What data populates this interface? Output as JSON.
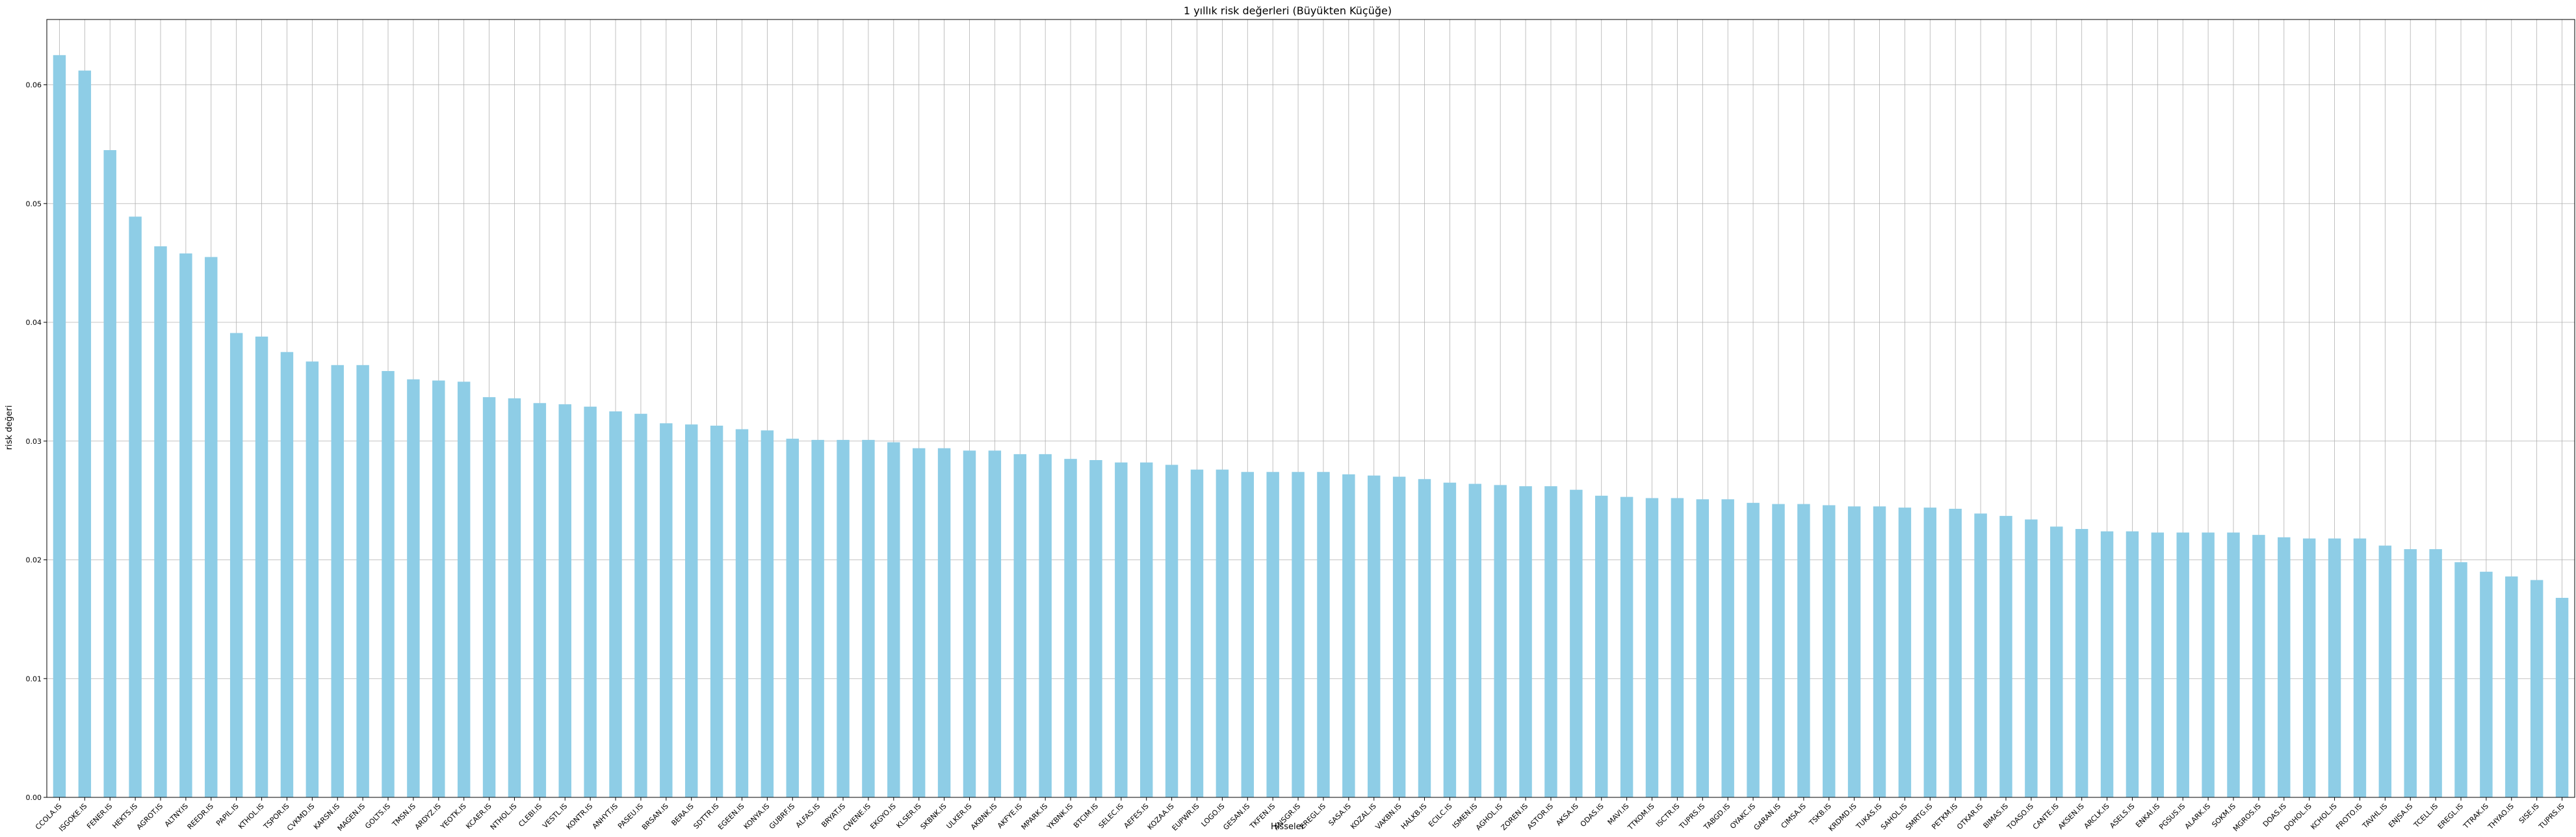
{
  "chart_data": {
    "type": "bar",
    "title": "1 yıllık risk değerleri (Büyükten Küçüğe)",
    "xlabel": "Hisseler",
    "ylabel": "risk değeri",
    "ylim": [
      0,
      0.0655
    ],
    "yticks": [
      "0.00",
      "0.01",
      "0.02",
      "0.03",
      "0.04",
      "0.05",
      "0.06"
    ],
    "grid": true,
    "bar_color": "#8ecde6",
    "categories": [
      "CCOLA.IS",
      "ISGOKE.IS",
      "FENER.IS",
      "HEKTS.IS",
      "AGROT.IS",
      "ALTNY.IS",
      "REEDR.IS",
      "PAPIL.IS",
      "KTHOL.IS",
      "TSPOR.IS",
      "CVKMD.IS",
      "KARSN.IS",
      "MAGEN.IS",
      "GOLTS.IS",
      "TMSN.IS",
      "ARDYZ.IS",
      "YEOTK.IS",
      "KCAER.IS",
      "NTHOL.IS",
      "CLEBI.IS",
      "VESTL.IS",
      "KONTR.IS",
      "ANHYT.IS",
      "PASEU.IS",
      "BRSAN.IS",
      "BERA.IS",
      "SDTTR.IS",
      "EGEEN.IS",
      "KONYA.IS",
      "GUBRF.IS",
      "ALFAS.IS",
      "BRYAT.IS",
      "CWENE.IS",
      "EKGYO.IS",
      "KLSER.IS",
      "SKBNK.IS",
      "ULKER.IS",
      "AKBNK.IS",
      "AKFYE.IS",
      "MPARK.IS",
      "YKBNK.IS",
      "BTCIM.IS",
      "SELEC.IS",
      "AEFES.IS",
      "KOZAA.IS",
      "EUPWR.IS",
      "LOGO.IS",
      "GESAN.IS",
      "TKFEN.IS",
      "ANSGR.IS",
      "EREGL.IS",
      "SASA.IS",
      "KOZAL.IS",
      "VAKBN.IS",
      "HALKB.IS",
      "ECILC.IS",
      "ISMEN.IS",
      "AGHOL.IS",
      "ZOREN.IS",
      "ASTOR.IS",
      "AKSA.IS",
      "ODAS.IS",
      "MAVI.IS",
      "TTKOM.IS",
      "ISCTR.IS",
      "TUPRS.IS",
      "TABGD.IS",
      "OYAKC.IS",
      "GARAN.IS",
      "CIMSA.IS",
      "TSKB.IS",
      "KRDMD.IS",
      "TUKAS.IS",
      "SAHOL.IS",
      "SMRTG.IS",
      "PETKM.IS",
      "OTKAR.IS",
      "BIMAS.IS",
      "TOASO.IS",
      "CANTE.IS",
      "AKSEN.IS",
      "ARCLK.IS",
      "ASELS.IS",
      "ENKAI.IS",
      "PGSUS.IS",
      "ALARK.IS",
      "SOKM.IS",
      "MGROS.IS",
      "DOAS.IS",
      "DOHOL.IS",
      "KCHOL.IS",
      "FROTO.IS",
      "TAVHL.IS",
      "ENJSA.IS",
      "TCELL.IS",
      "EREGL.IS",
      "TTRAK.IS",
      "THYAO.IS",
      "SISE.IS",
      "TUPRS.IS"
    ],
    "values": [
      0.0625,
      0.0612,
      0.0545,
      0.0489,
      0.0464,
      0.0458,
      0.0455,
      0.0391,
      0.0388,
      0.0375,
      0.0367,
      0.0364,
      0.0364,
      0.0359,
      0.0352,
      0.0351,
      0.035,
      0.0337,
      0.0336,
      0.0332,
      0.0331,
      0.0329,
      0.0325,
      0.0323,
      0.0315,
      0.0314,
      0.0313,
      0.031,
      0.0309,
      0.0302,
      0.0301,
      0.0301,
      0.0301,
      0.0299,
      0.0294,
      0.0294,
      0.0292,
      0.0292,
      0.0289,
      0.0289,
      0.0285,
      0.0284,
      0.0282,
      0.0282,
      0.028,
      0.0276,
      0.0276,
      0.0274,
      0.0274,
      0.0274,
      0.0274,
      0.0272,
      0.0271,
      0.027,
      0.0268,
      0.0265,
      0.0264,
      0.0263,
      0.0262,
      0.0262,
      0.0259,
      0.0254,
      0.0253,
      0.0252,
      0.0252,
      0.0251,
      0.0251,
      0.0248,
      0.0247,
      0.0247,
      0.0246,
      0.0245,
      0.0245,
      0.0244,
      0.0244,
      0.0243,
      0.0239,
      0.0237,
      0.0234,
      0.0228,
      0.0226,
      0.0224,
      0.0224,
      0.0223,
      0.0223,
      0.0223,
      0.0223,
      0.0221,
      0.0219,
      0.0218,
      0.0218,
      0.0218,
      0.0212,
      0.0209,
      0.0209,
      0.0198,
      0.019,
      0.0186,
      0.0183,
      0.0168
    ]
  }
}
